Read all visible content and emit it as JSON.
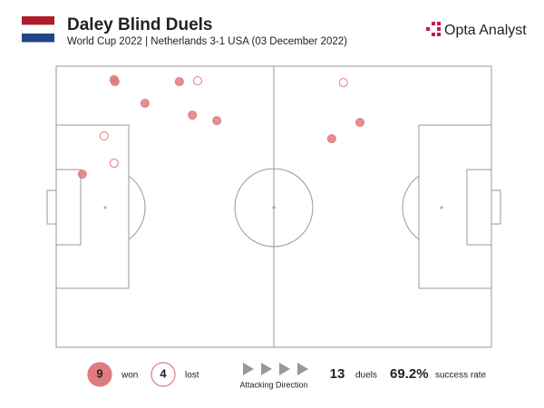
{
  "chart_data": {
    "type": "scatter",
    "title": "Daley Blind Duels",
    "subtitle": "World Cup 2022 | Netherlands 3-1 USA (03 December 2022)",
    "brand": "Opta Analyst",
    "xlim": [
      0,
      100
    ],
    "ylim": [
      0,
      100
    ],
    "series": [
      {
        "name": "won",
        "count": 9,
        "color": "#e07b80",
        "filled": true,
        "x": [
          13.3,
          13.5,
          28.3,
          20.4,
          31.3,
          36.9,
          6.0,
          69.8,
          63.3
        ],
        "values": [
          95.2,
          94.5,
          94.5,
          86.8,
          82.6,
          80.6,
          61.6,
          80.0,
          74.2
        ]
      },
      {
        "name": "lost",
        "count": 4,
        "color": "#e07b80",
        "filled": false,
        "x": [
          32.5,
          66.0,
          11.0,
          13.3
        ],
        "values": [
          94.8,
          94.2,
          75.2,
          65.5
        ]
      }
    ],
    "direction_label": "Attacking Direction",
    "total_duels": 13,
    "total_label": "duels",
    "success_rate": {
      "value": 69.2,
      "label": "69.2%"
    },
    "success_label": "success rate"
  }
}
